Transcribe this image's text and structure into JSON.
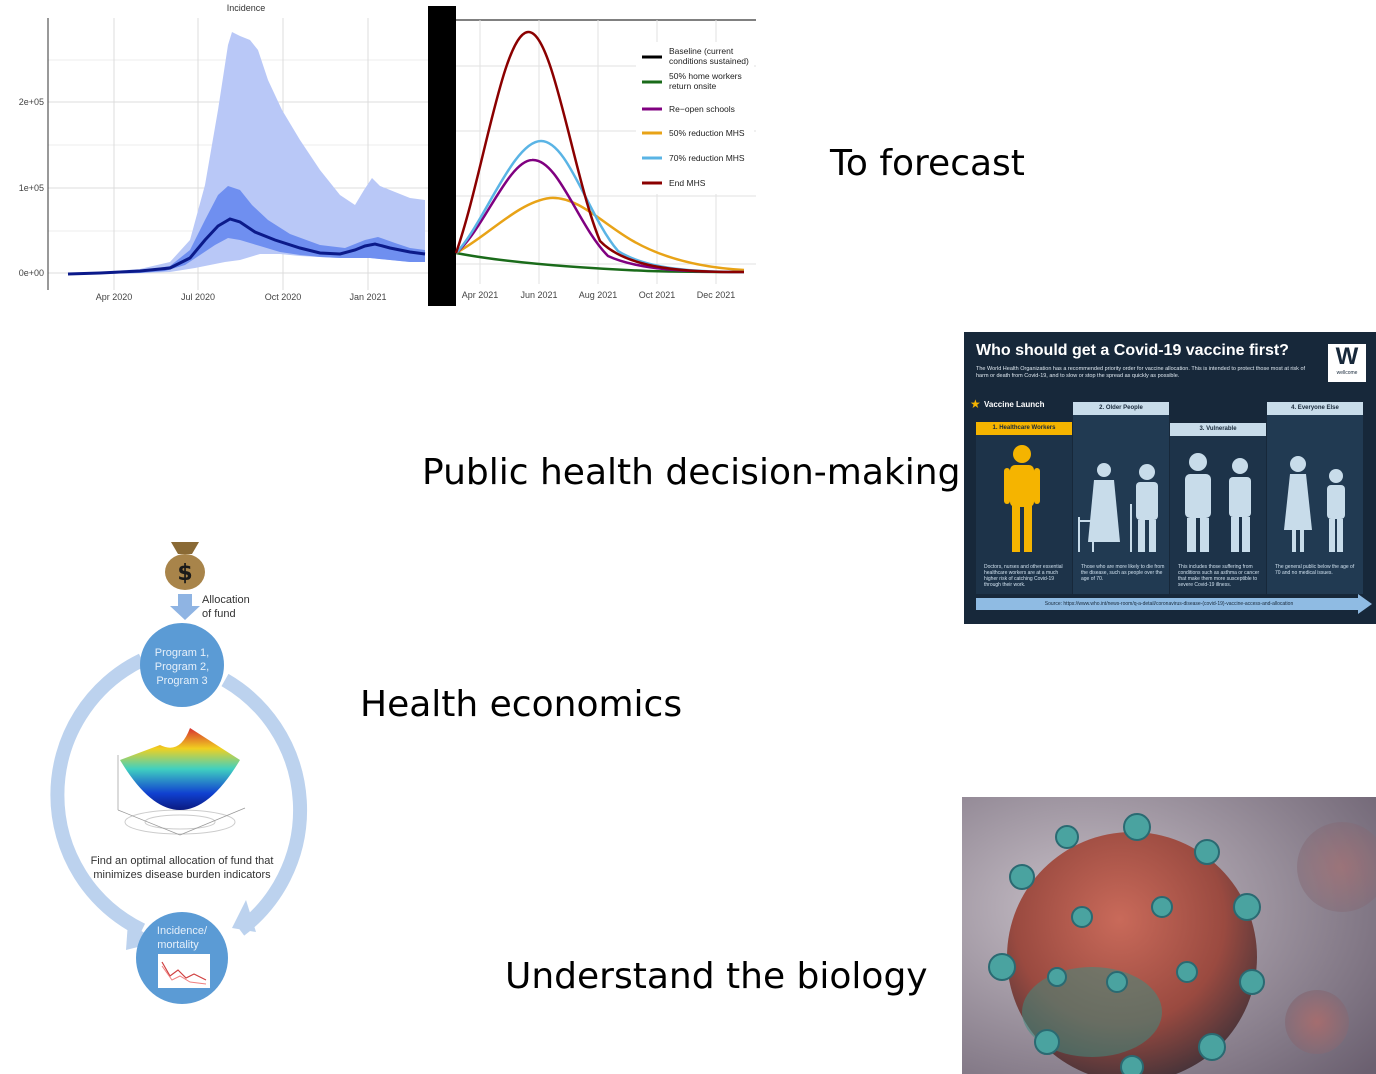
{
  "labels": {
    "forecast": "To forecast",
    "decision": "Public health decision-making",
    "economics": "Health economics",
    "biology": "Understand the biology"
  },
  "incidence_chart": {
    "title": "Incidence",
    "y_ticks": [
      "2e+05",
      "1e+05",
      "0e+00"
    ],
    "x_ticks": [
      "Apr 2020",
      "Jul 2020",
      "Oct 2020",
      "Jan 2021"
    ],
    "colors": {
      "outer": "#b9c8f7",
      "inner": "#6f8ff0",
      "median": "#0b1a8a"
    }
  },
  "scenario_chart": {
    "x_ticks": [
      "Apr 2021",
      "Jun 2021",
      "Aug 2021",
      "Oct 2021",
      "Dec 2021"
    ],
    "legend": [
      {
        "label": "Baseline (current conditions sustained)",
        "color": "#000000"
      },
      {
        "label": "50% home workers return onsite",
        "color": "#1a6b1a"
      },
      {
        "label": "Re−open schools",
        "color": "#800080"
      },
      {
        "label": "50% reduction MHS",
        "color": "#e8a317"
      },
      {
        "label": "70% reduction MHS",
        "color": "#5ab4e5"
      },
      {
        "label": "End MHS",
        "color": "#8b0000"
      }
    ]
  },
  "vaccine_infographic": {
    "title": "Who should get a Covid-19 vaccine first?",
    "subtitle": "The World Health Organization has a recommended priority order for vaccine allocation. This is intended to protect those most at risk of harm or death from Covid-19, and to slow or stop the spread as quickly as possible.",
    "logo_letter": "W",
    "logo_name": "wellcome",
    "launch": "Vaccine Launch",
    "groups": [
      {
        "label": "1. Healthcare Workers",
        "desc": "Doctors, nurses and other essential healthcare workers are at a much higher risk of catching Covid-19 through their work."
      },
      {
        "label": "2. Older People",
        "desc": "Those who are more likely to die from the disease, such as people over the age of 70."
      },
      {
        "label": "3. Vulnerable",
        "desc": "This includes those suffering from conditions such as asthma or cancer that make them more susceptible to severe Covid-19 illness."
      },
      {
        "label": "4. Everyone Else",
        "desc": "The general public below the age of 70 and no medical issues."
      }
    ],
    "source": "Source: https://www.who.int/news-room/q-a-detail/coronavirus-disease-(covid-19)-vaccine-access-and-allocation",
    "colors": {
      "bg": "#17283a",
      "highlight": "#f5b400",
      "people": "#c8dcea"
    }
  },
  "economics_diagram": {
    "fund_label": "Allocation of fund",
    "programs": "Program 1, Program 2, Program 3",
    "center_text": "Find an optimal allocation of fund that minimizes disease burden indicators",
    "outcome": "Incidence/ mortality",
    "colors": {
      "ring": "#a9c6e8",
      "node": "#5b9bd5"
    }
  }
}
